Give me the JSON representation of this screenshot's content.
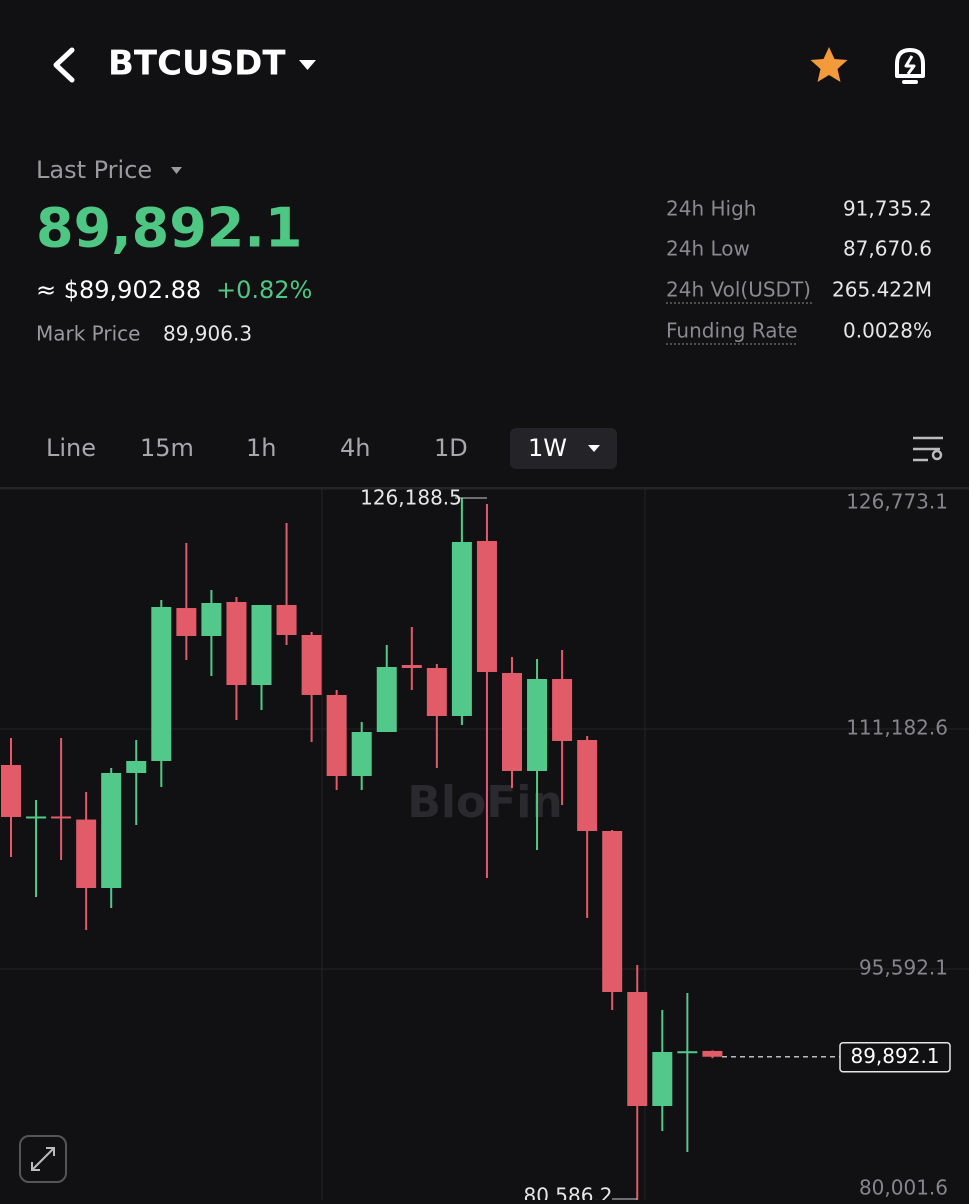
{
  "header": {
    "symbol": "BTCUSDT"
  },
  "price": {
    "label": "Last Price",
    "value": "89,892.1",
    "usd": "≈ $89,902.88",
    "change": "+0.82%",
    "mark_label": "Mark Price",
    "mark_value": "89,906.3"
  },
  "stats": [
    [
      "24h High",
      "91,735.2"
    ],
    [
      "24h Low",
      "87,670.6"
    ],
    [
      "24h Vol(USDT)",
      "265.422M"
    ],
    [
      "Funding Rate",
      "0.0028%"
    ]
  ],
  "tabs": [
    {
      "label": "Line",
      "active": false
    },
    {
      "label": "15m",
      "active": false
    },
    {
      "label": "1h",
      "active": false
    },
    {
      "label": "4h",
      "active": false
    },
    {
      "label": "1D",
      "active": false
    },
    {
      "label": "1W",
      "active": true
    }
  ],
  "chart_data": {
    "type": "candlestick",
    "watermark": "BloFin",
    "up_color": "#52c98a",
    "down_color": "#e15b69",
    "grid": true,
    "open": [
      108844,
      105400,
      105500,
      105300,
      100854,
      108325,
      109104,
      119040,
      117224,
      119433,
      114041,
      119238,
      117289,
      113392,
      108130,
      110988,
      115340,
      115145,
      112027,
      123396,
      114821,
      108455,
      114431,
      110468,
      104557,
      94099,
      86693,
      90150,
      90270
    ],
    "high": [
      110598,
      106571,
      110598,
      107090,
      108650,
      110468,
      119563,
      123266,
      120212,
      119758,
      119238,
      124565,
      117484,
      113716,
      111638,
      116639,
      117809,
      115405,
      126188.5,
      125800,
      115860,
      115730,
      116315,
      110728,
      104622,
      95852,
      92929,
      94034,
      90300
    ],
    "low": [
      102868,
      100270,
      102673,
      98126,
      99555,
      104947,
      107415,
      115665,
      114626,
      111768,
      112417,
      116639,
      110338,
      107220,
      107220,
      110988,
      113716,
      108650,
      111443,
      101504,
      107350,
      103323,
      106246,
      98905,
      92929,
      80586.2,
      85069,
      83705,
      89800
    ],
    "close": [
      105467,
      105500,
      105450,
      100854,
      108325,
      109104,
      119108,
      117224,
      119368,
      114041,
      119238,
      117289,
      113392,
      108130,
      110988,
      115210,
      115145,
      112027,
      123331,
      114886,
      108455,
      114431,
      110403,
      104557,
      94099,
      86693,
      90200,
      90250,
      89892.1
    ],
    "ylim": [
      80001.6,
      126773.1
    ],
    "yticks": [
      {
        "value": 126773.1,
        "label": "126,773.1"
      },
      {
        "value": 111182.6,
        "label": "111,182.6"
      },
      {
        "value": 95592.1,
        "label": "95,592.1"
      },
      {
        "value": 80001.6,
        "label": "80,001.6"
      }
    ],
    "high_marker": {
      "value": 126188.5,
      "label": "126,188.5"
    },
    "low_marker": {
      "value": 80586.2,
      "label": "80,586.2"
    },
    "last_price": {
      "value": 89892.1,
      "label": "89,892.1"
    }
  }
}
